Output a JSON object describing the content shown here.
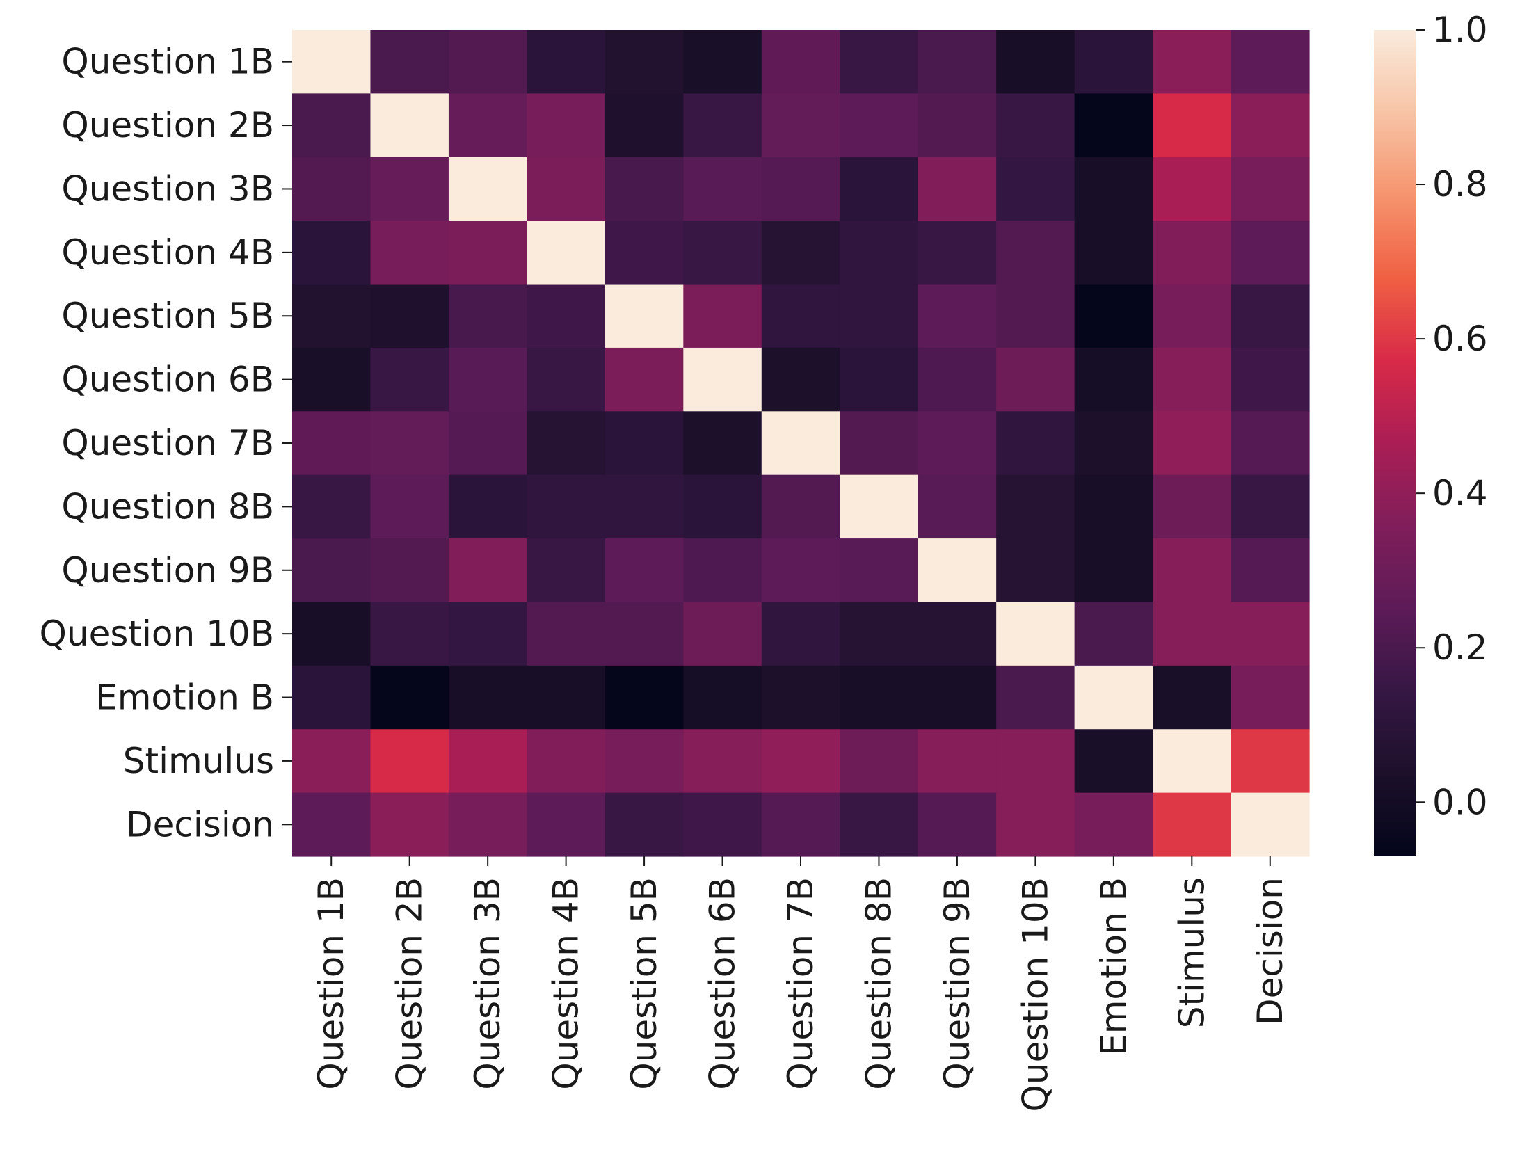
{
  "chart_data": {
    "type": "heatmap",
    "title": "",
    "xlabel": "",
    "ylabel": "",
    "rows": [
      "Question 1B",
      "Question 2B",
      "Question 3B",
      "Question 4B",
      "Question 5B",
      "Question 6B",
      "Question 7B",
      "Question 8B",
      "Question 9B",
      "Question 10B",
      "Emotion B",
      "Stimulus",
      "Decision"
    ],
    "columns": [
      "Question 1B",
      "Question 2B",
      "Question 3B",
      "Question 4B",
      "Question 5B",
      "Question 6B",
      "Question 7B",
      "Question 8B",
      "Question 9B",
      "Question 10B",
      "Emotion B",
      "Stimulus",
      "Decision"
    ],
    "values": [
      [
        1.0,
        0.2,
        0.22,
        0.1,
        0.06,
        0.03,
        0.26,
        0.15,
        0.2,
        0.02,
        0.1,
        0.38,
        0.25
      ],
      [
        0.2,
        1.0,
        0.28,
        0.33,
        0.05,
        0.15,
        0.27,
        0.25,
        0.22,
        0.15,
        -0.06,
        0.57,
        0.38
      ],
      [
        0.22,
        0.28,
        1.0,
        0.34,
        0.19,
        0.24,
        0.23,
        0.1,
        0.36,
        0.13,
        0.02,
        0.46,
        0.33
      ],
      [
        0.1,
        0.33,
        0.34,
        1.0,
        0.17,
        0.15,
        0.08,
        0.12,
        0.15,
        0.22,
        0.02,
        0.36,
        0.25
      ],
      [
        0.06,
        0.05,
        0.19,
        0.17,
        1.0,
        0.34,
        0.12,
        0.12,
        0.25,
        0.22,
        -0.06,
        0.33,
        0.15
      ],
      [
        0.03,
        0.15,
        0.24,
        0.15,
        0.34,
        1.0,
        0.04,
        0.1,
        0.21,
        0.3,
        0.01,
        0.37,
        0.17
      ],
      [
        0.26,
        0.27,
        0.23,
        0.08,
        0.1,
        0.04,
        1.0,
        0.22,
        0.25,
        0.12,
        0.04,
        0.4,
        0.23
      ],
      [
        0.15,
        0.25,
        0.1,
        0.12,
        0.12,
        0.1,
        0.22,
        1.0,
        0.24,
        0.08,
        0.02,
        0.3,
        0.15
      ],
      [
        0.2,
        0.22,
        0.36,
        0.15,
        0.25,
        0.21,
        0.25,
        0.24,
        1.0,
        0.08,
        0.02,
        0.37,
        0.23
      ],
      [
        0.02,
        0.15,
        0.13,
        0.22,
        0.22,
        0.3,
        0.12,
        0.08,
        0.08,
        1.0,
        0.2,
        0.37,
        0.37
      ],
      [
        0.1,
        -0.06,
        0.02,
        0.02,
        -0.06,
        0.01,
        0.04,
        0.02,
        0.02,
        0.2,
        1.0,
        0.03,
        0.33
      ],
      [
        0.38,
        0.57,
        0.46,
        0.36,
        0.33,
        0.37,
        0.4,
        0.3,
        0.37,
        0.37,
        0.03,
        1.0,
        0.6
      ],
      [
        0.25,
        0.38,
        0.33,
        0.25,
        0.15,
        0.17,
        0.23,
        0.15,
        0.23,
        0.37,
        0.33,
        0.6,
        1.0
      ]
    ],
    "vmin": -0.07,
    "vmax": 1.0,
    "colormap": "rocket",
    "colorbar": {
      "ticks": [
        0.0,
        0.2,
        0.4,
        0.6,
        0.8,
        1.0
      ],
      "tick_labels": [
        "0.0",
        "0.2",
        "0.4",
        "0.6",
        "0.8",
        "1.0"
      ]
    },
    "grid": false,
    "legend": "colorbar-right"
  }
}
